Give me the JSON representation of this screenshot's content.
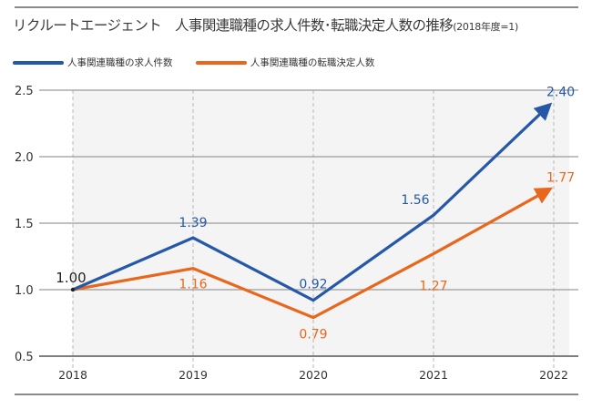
{
  "header": {
    "title_main": "リクルートエージェント　人事関連職種の求人件数･転職決定人数の推移",
    "title_note": "(2018年度=1)"
  },
  "colors": {
    "series_blue": "#2558a8",
    "series_orange": "#e8671c",
    "grid": "#9a9a9a",
    "plot_bg": "#f4f4f4",
    "start_label": "#222222"
  },
  "chart_data": {
    "type": "line",
    "title": "リクルートエージェント　人事関連職種の求人件数･転職決定人数の推移 (2018年度=1)",
    "xlabel": "",
    "ylabel": "",
    "x": [
      "2018",
      "2019",
      "2020",
      "2021",
      "2022"
    ],
    "ylim": [
      0.5,
      2.5
    ],
    "yticks": [
      "0.5",
      "1.0",
      "1.5",
      "2.0",
      "2.5"
    ],
    "grid": true,
    "legend_position": "top-left",
    "start_label": "1.00",
    "series": [
      {
        "name": "人事関連職種の求人件数",
        "color": "#2558a8",
        "values": [
          1.0,
          1.39,
          0.92,
          1.56,
          2.4
        ],
        "labels": [
          "1.00",
          "1.39",
          "0.92",
          "1.56",
          "2.40"
        ]
      },
      {
        "name": "人事関連職種の転職決定人数",
        "color": "#e8671c",
        "values": [
          1.0,
          1.16,
          0.79,
          1.27,
          1.77
        ],
        "labels": [
          "1.00",
          "1.16",
          "0.79",
          "1.27",
          "1.77"
        ]
      }
    ]
  }
}
